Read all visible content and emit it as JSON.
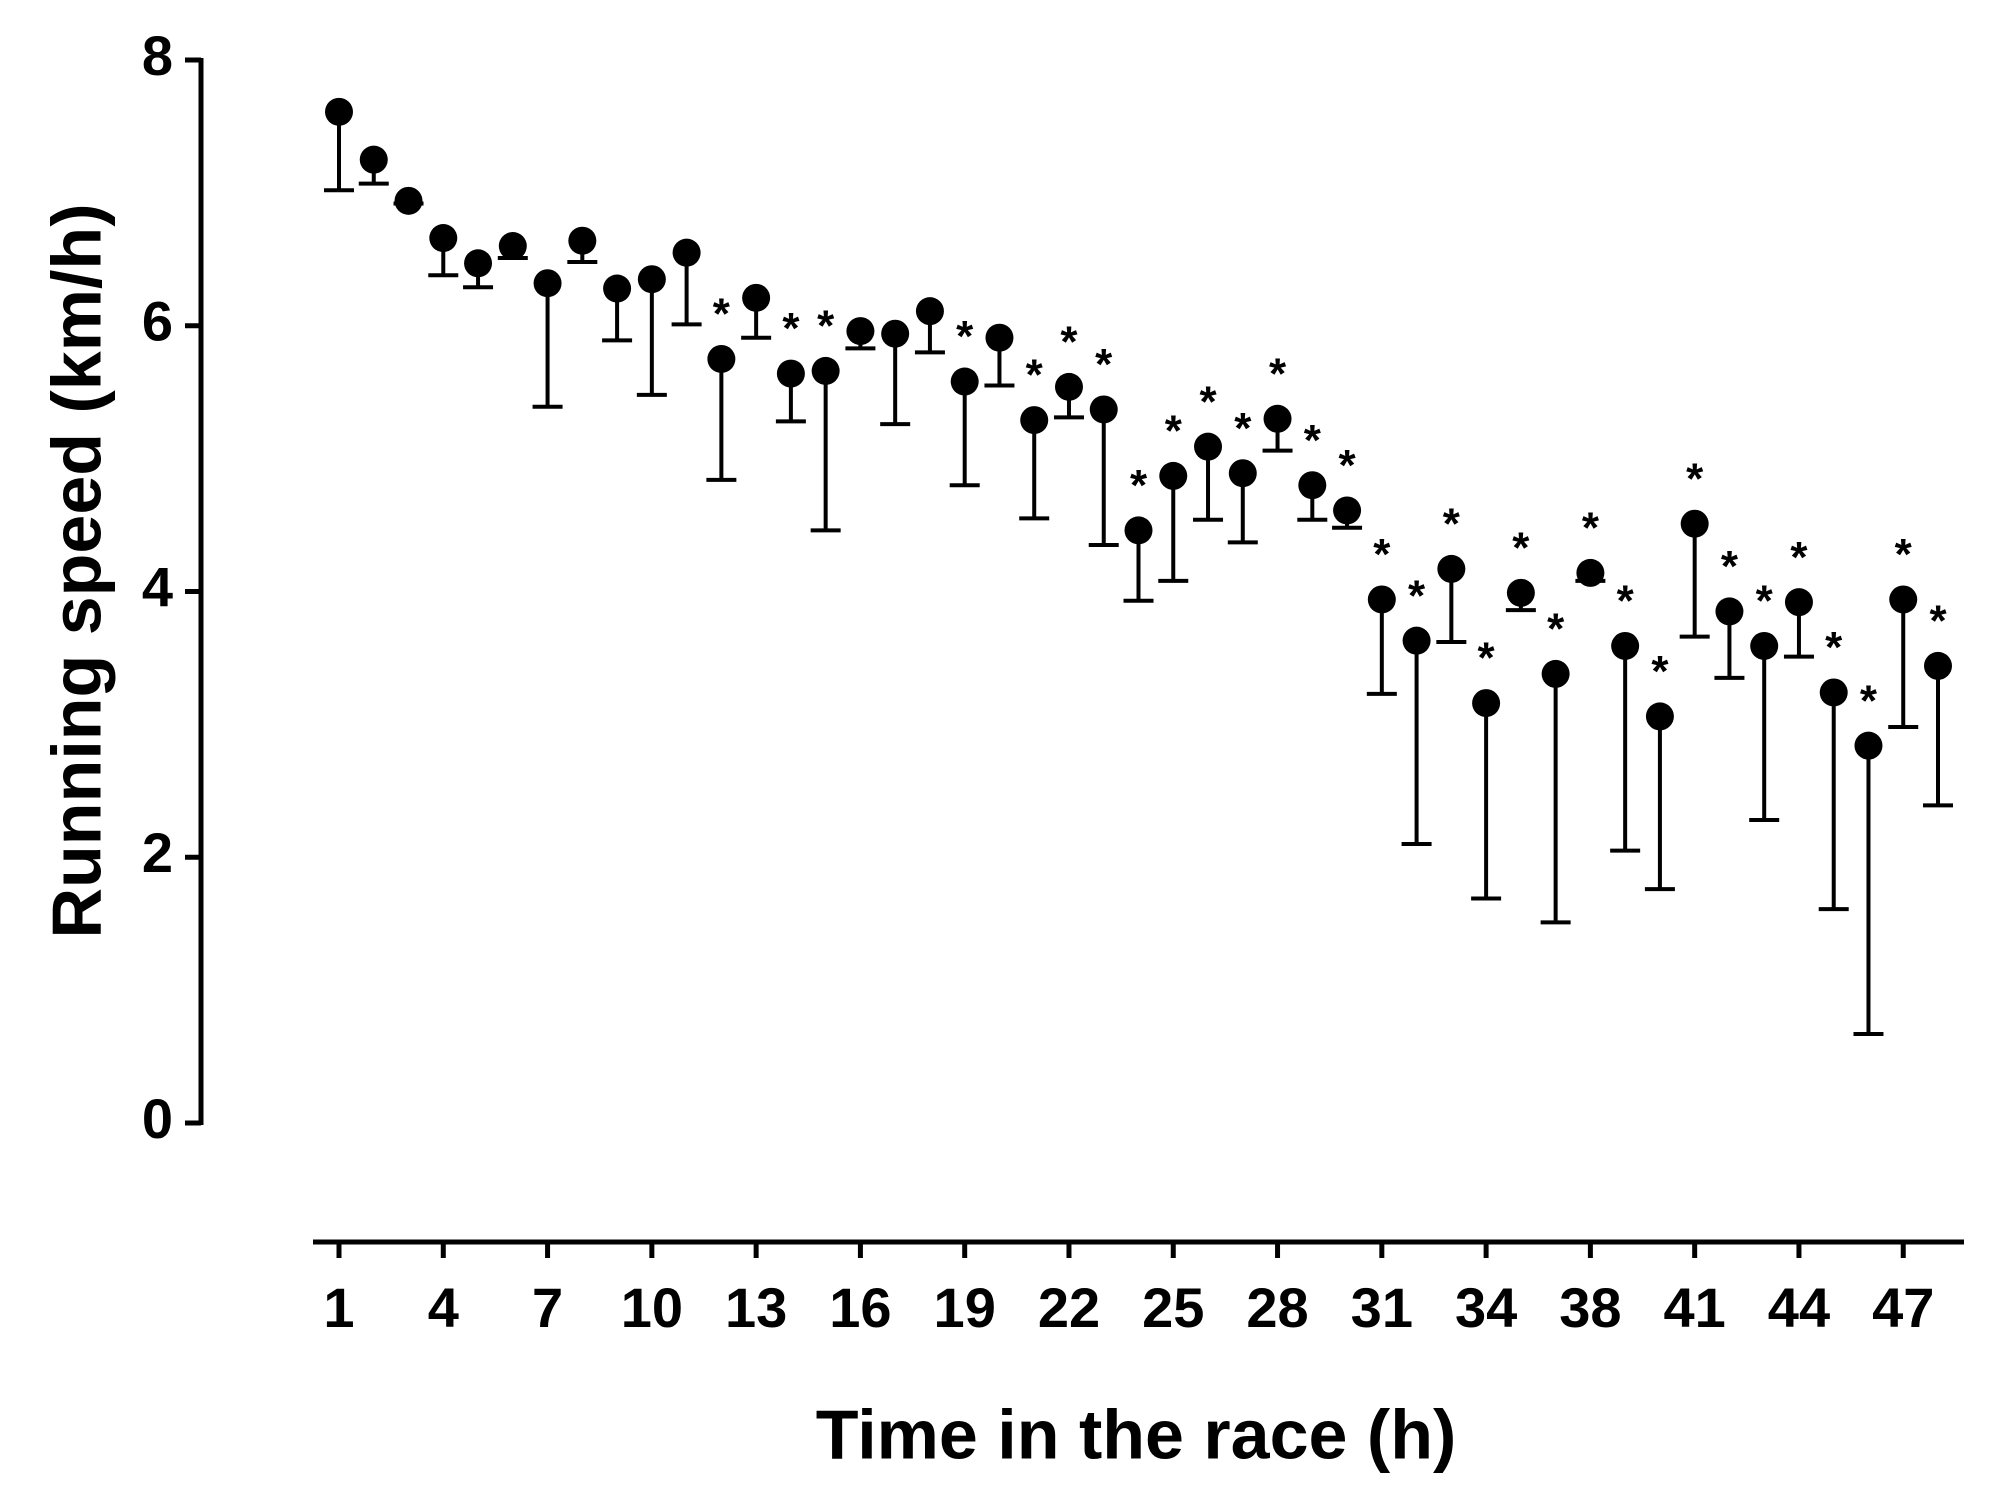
{
  "chart_data": {
    "type": "scatter",
    "x_label": "Time in the race (h)",
    "y_label": "Running speed (km/h)",
    "categories": [
      "1",
      null,
      null,
      "4",
      null,
      null,
      "7",
      null,
      null,
      "10",
      null,
      null,
      "13",
      null,
      null,
      "16",
      null,
      null,
      "19",
      null,
      null,
      "22",
      null,
      null,
      "25",
      null,
      null,
      "28",
      null,
      null,
      "31",
      null,
      null,
      "34",
      null,
      null,
      "38",
      null,
      null,
      "41",
      null,
      null,
      "44",
      null,
      null,
      "47",
      null
    ],
    "values": [
      7.61,
      7.25,
      6.94,
      6.66,
      6.47,
      6.6,
      6.32,
      6.64,
      6.28,
      6.35,
      6.55,
      5.75,
      6.21,
      5.64,
      5.66,
      5.96,
      5.94,
      6.11,
      5.58,
      5.91,
      5.29,
      5.54,
      5.37,
      4.46,
      4.87,
      5.09,
      4.89,
      5.3,
      4.8,
      4.61,
      3.94,
      3.63,
      4.17,
      3.16,
      3.99,
      3.38,
      4.14,
      3.59,
      3.06,
      4.51,
      3.85,
      3.59,
      3.92,
      3.24,
      2.84,
      3.94,
      3.44
    ],
    "errors": [
      0.59,
      0.18,
      0.02,
      0.28,
      0.18,
      0.09,
      0.93,
      0.16,
      0.39,
      0.87,
      0.54,
      0.91,
      0.3,
      0.36,
      1.2,
      0.13,
      0.68,
      0.31,
      0.78,
      0.36,
      0.74,
      0.23,
      1.02,
      0.53,
      0.79,
      0.55,
      0.52,
      0.24,
      0.26,
      0.13,
      0.71,
      1.53,
      0.55,
      1.47,
      0.13,
      1.87,
      0.06,
      1.54,
      1.3,
      0.85,
      0.5,
      1.31,
      0.41,
      1.63,
      2.17,
      0.96,
      1.05
    ],
    "significance": [
      null,
      null,
      null,
      null,
      null,
      null,
      null,
      null,
      null,
      null,
      null,
      "*",
      null,
      "*",
      "*",
      null,
      null,
      null,
      "*",
      null,
      "*",
      "*",
      "*",
      "*",
      "*",
      "*",
      "*",
      "*",
      "*",
      "*",
      "*",
      "*",
      "*",
      "*",
      "*",
      "*",
      "*",
      "*",
      "*",
      "*",
      "*",
      "*",
      "*",
      "*",
      "*",
      "*",
      "*"
    ],
    "color": "#000000",
    "ylim": [
      0,
      8
    ],
    "yticks": [
      0,
      2,
      4,
      6,
      8
    ]
  }
}
